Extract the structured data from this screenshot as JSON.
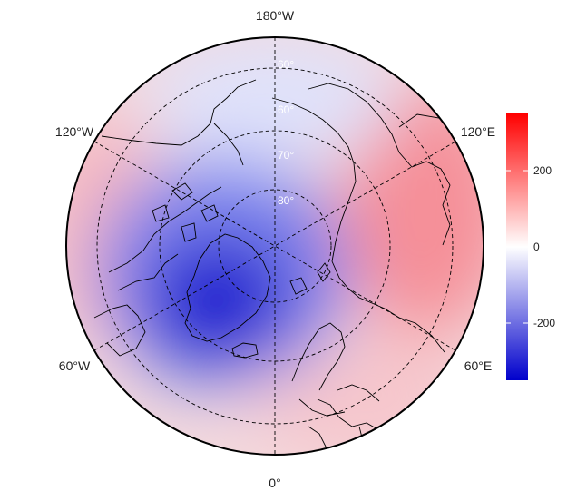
{
  "map": {
    "projection": "polar-stereographic-north",
    "longitude_labels": {
      "top": "180°W",
      "upper_left": "120°W",
      "upper_right": "120°E",
      "lower_left": "60°W",
      "lower_right": "60°E",
      "bottom": "0°"
    },
    "latitude_labels": [
      "60°",
      "60°",
      "70°",
      "80°"
    ],
    "colors": {
      "negative": "#0000cc",
      "zero": "#ffffff",
      "positive": "#ff0000",
      "coast": "#000000",
      "graticule": "#000000"
    }
  },
  "colorbar": {
    "ticks": [
      {
        "value": 200,
        "label": "200"
      },
      {
        "value": 0,
        "label": "0"
      },
      {
        "value": -200,
        "label": "-200"
      }
    ],
    "range": [
      -350,
      350
    ]
  }
}
